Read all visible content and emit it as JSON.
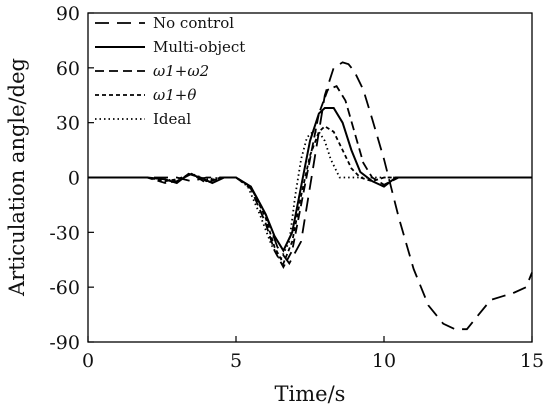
{
  "chart_data": {
    "type": "line",
    "xlabel": "Time/s",
    "ylabel": "Articulation angle/deg",
    "xlim": [
      0,
      15
    ],
    "ylim": [
      -90,
      90
    ],
    "xticks": [
      0,
      5,
      10,
      15
    ],
    "yticks": [
      -90,
      -60,
      -30,
      0,
      30,
      60,
      90
    ],
    "legend_position": "top-left",
    "grid": false,
    "series": [
      {
        "name": "No control",
        "dash": "long-dash",
        "x": [
          0,
          2,
          3,
          3.5,
          4,
          4.5,
          5,
          5.5,
          6,
          6.4,
          6.8,
          7.2,
          7.6,
          8,
          8.3,
          8.6,
          8.8,
          9,
          9.3,
          9.6,
          10,
          10.5,
          11,
          11.5,
          12,
          12.4,
          12.8,
          13.2,
          13.6,
          14,
          14.4,
          14.8,
          15
        ],
        "y": [
          0,
          0,
          0,
          -2,
          0,
          0,
          0,
          -5,
          -20,
          -38,
          -47,
          -35,
          5,
          45,
          60,
          63,
          62,
          58,
          48,
          32,
          10,
          -22,
          -50,
          -70,
          -80,
          -83,
          -83,
          -75,
          -67,
          -65,
          -63,
          -60,
          -52
        ]
      },
      {
        "name": "Multi-object",
        "dash": "solid",
        "x": [
          0,
          2,
          2.6,
          3,
          3.4,
          3.8,
          4.2,
          4.6,
          5,
          5.5,
          6,
          6.3,
          6.6,
          6.9,
          7.2,
          7.5,
          7.8,
          8,
          8.3,
          8.6,
          8.9,
          9.2,
          9.6,
          10,
          10.4,
          10.8,
          11.5,
          15
        ],
        "y": [
          0,
          0,
          -1,
          -3,
          2,
          0,
          -3,
          0,
          0,
          -5,
          -20,
          -32,
          -40,
          -30,
          -5,
          20,
          35,
          38,
          38,
          30,
          15,
          3,
          -2,
          -5,
          0,
          0,
          0,
          0
        ]
      },
      {
        "name": "ω1+ω2",
        "dash": "medium-dash",
        "x": [
          0,
          2,
          2.6,
          3,
          3.5,
          4,
          4.5,
          5,
          5.5,
          6,
          6.3,
          6.6,
          6.9,
          7.2,
          7.5,
          7.8,
          8.1,
          8.4,
          8.7,
          9,
          9.3,
          9.6,
          10,
          10.5,
          11,
          15
        ],
        "y": [
          0,
          0,
          -3,
          -2,
          2,
          -3,
          0,
          0,
          -6,
          -25,
          -40,
          -49,
          -40,
          -15,
          10,
          35,
          48,
          50,
          42,
          25,
          8,
          0,
          -4,
          0,
          0,
          0
        ]
      },
      {
        "name": "ω1+θ",
        "dash": "short-dash",
        "x": [
          0,
          2,
          2.6,
          3,
          3.5,
          4,
          4.5,
          5,
          5.5,
          6,
          6.3,
          6.6,
          6.9,
          7.2,
          7.5,
          7.8,
          8,
          8.3,
          8.6,
          8.9,
          9.2,
          9.6,
          10,
          11,
          15
        ],
        "y": [
          0,
          0,
          -2,
          -1,
          2,
          -2,
          0,
          0,
          -5,
          -22,
          -38,
          -47,
          -35,
          -10,
          12,
          25,
          28,
          25,
          15,
          5,
          0,
          -2,
          0,
          0,
          0
        ]
      },
      {
        "name": "Ideal",
        "dash": "dot",
        "x": [
          0,
          2,
          2.6,
          3,
          3.5,
          4,
          4.5,
          5,
          5.4,
          5.8,
          6.2,
          6.5,
          6.8,
          7,
          7.2,
          7.4,
          7.6,
          7.8,
          8,
          8.2,
          8.5,
          8.8,
          9.2,
          15
        ],
        "y": [
          0,
          0,
          -1,
          -2,
          2,
          -1,
          0,
          0,
          -5,
          -20,
          -37,
          -45,
          -35,
          -10,
          10,
          22,
          25,
          25,
          20,
          10,
          0,
          0,
          0,
          0
        ]
      }
    ]
  }
}
